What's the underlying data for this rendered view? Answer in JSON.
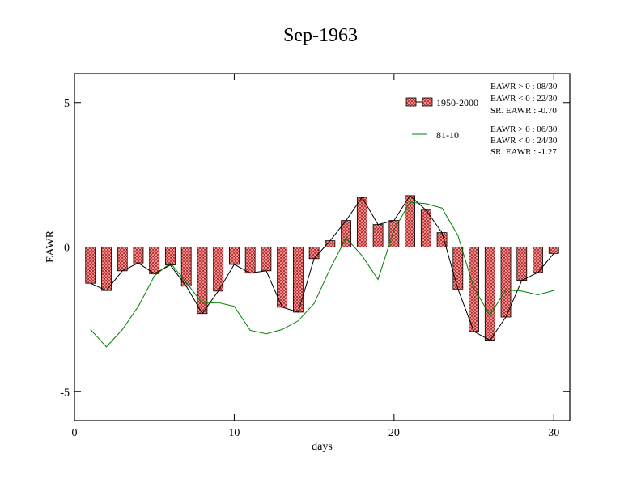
{
  "chart_data": {
    "type": "bar",
    "title": "Sep-1963",
    "xlabel": "days",
    "ylabel": "EAWR",
    "xlim": [
      0,
      31
    ],
    "ylim": [
      -6,
      6
    ],
    "xticks": [
      0,
      10,
      20,
      30
    ],
    "xtick_labels": [
      "0",
      "10",
      "20",
      "30"
    ],
    "yticks": [
      5,
      0,
      -5
    ],
    "ytick_labels": [
      "5",
      "0",
      "-5"
    ],
    "grid": false,
    "legend_position": "top-right",
    "series": [
      {
        "name": "1950-2000",
        "kind": "bar+line",
        "color": "#ff8080",
        "line_color": "#000000",
        "x": [
          1,
          2,
          3,
          4,
          5,
          6,
          7,
          8,
          9,
          10,
          11,
          12,
          13,
          14,
          15,
          16,
          17,
          18,
          19,
          20,
          21,
          22,
          23,
          24,
          25,
          26,
          27,
          28,
          29,
          30
        ],
        "values": [
          -1.25,
          -1.5,
          -0.82,
          -0.55,
          -0.92,
          -0.62,
          -1.35,
          -2.3,
          -1.52,
          -0.6,
          -0.9,
          -0.82,
          -2.08,
          -2.25,
          -0.4,
          0.22,
          0.92,
          1.72,
          0.78,
          0.92,
          1.78,
          1.28,
          0.5,
          -1.45,
          -2.92,
          -3.22,
          -2.42,
          -1.15,
          -0.88,
          -0.22
        ]
      },
      {
        "name": "81-10",
        "kind": "line",
        "color": "#008000",
        "x": [
          1,
          2,
          3,
          4,
          5,
          6,
          7,
          8,
          9,
          10,
          11,
          12,
          13,
          14,
          15,
          16,
          17,
          18,
          19,
          20,
          21,
          22,
          23,
          24,
          25,
          26,
          27,
          28,
          29,
          30
        ],
        "values": [
          -2.85,
          -3.45,
          -2.85,
          -2.05,
          -1.0,
          -0.55,
          -1.22,
          -1.95,
          -1.92,
          -2.05,
          -2.88,
          -3.0,
          -2.85,
          -2.55,
          -1.95,
          -0.75,
          0.32,
          -0.3,
          -1.12,
          0.6,
          1.55,
          1.5,
          1.35,
          0.4,
          -1.42,
          -2.35,
          -1.48,
          -1.52,
          -1.65,
          -1.5
        ]
      }
    ],
    "annotations": [
      [
        "EAWR > 0 : 08/30",
        "EAWR < 0 : 22/30",
        "SR. EAWR : -0.70"
      ],
      [
        "EAWR > 0 : 06/30",
        "EAWR < 0 : 24/30",
        "SR. EAWR : -1.27"
      ]
    ]
  }
}
